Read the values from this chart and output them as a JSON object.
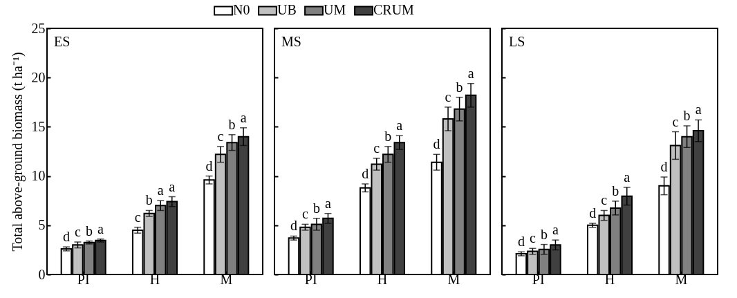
{
  "chart_data": [
    {
      "type": "bar",
      "title": "ES",
      "ylabel": "Total above-ground biomass (t ha⁻¹)",
      "categories": [
        "PI",
        "H",
        "M"
      ],
      "ylim": [
        0,
        25
      ],
      "yticks": [
        0,
        5,
        10,
        15,
        20,
        25
      ],
      "grid": false,
      "legend": "top",
      "series": [
        {
          "name": "N0",
          "color": "#ffffff",
          "values": [
            2.6,
            4.5,
            9.6
          ],
          "errors": [
            0.2,
            0.3,
            0.4
          ],
          "value_labels": [
            "d",
            "c",
            "d"
          ]
        },
        {
          "name": "UB",
          "color": "#c0c0c0",
          "values": [
            3.0,
            6.2,
            12.2
          ],
          "errors": [
            0.3,
            0.3,
            0.8
          ],
          "value_labels": [
            "c",
            "b",
            "c"
          ]
        },
        {
          "name": "UM",
          "color": "#808080",
          "values": [
            3.25,
            7.0,
            13.4
          ],
          "errors": [
            0.15,
            0.5,
            0.8
          ],
          "value_labels": [
            "b",
            "a",
            "b"
          ]
        },
        {
          "name": "CRUM",
          "color": "#404040",
          "values": [
            3.45,
            7.4,
            14.0
          ],
          "errors": [
            0.15,
            0.5,
            0.9
          ],
          "value_labels": [
            "a",
            "a",
            "a"
          ]
        }
      ]
    },
    {
      "type": "bar",
      "title": "MS",
      "categories": [
        "PI",
        "H",
        "M"
      ],
      "ylim": [
        0,
        25
      ],
      "yticks": [
        0,
        5,
        10,
        15,
        20,
        25
      ],
      "grid": false,
      "legend": false,
      "tick_labels": "x",
      "series": [
        {
          "color": "#ffffff",
          "values": [
            3.7,
            8.8,
            11.4
          ],
          "errors": [
            0.2,
            0.4,
            0.8
          ],
          "value_labels": [
            "d",
            "d",
            "d"
          ]
        },
        {
          "color": "#c0c0c0",
          "values": [
            4.8,
            11.2,
            15.8
          ],
          "errors": [
            0.3,
            0.6,
            1.2
          ],
          "value_labels": [
            "c",
            "c",
            "c"
          ]
        },
        {
          "color": "#808080",
          "values": [
            5.1,
            12.2,
            16.8
          ],
          "errors": [
            0.6,
            0.8,
            1.2
          ],
          "value_labels": [
            "b",
            "b",
            "b"
          ]
        },
        {
          "color": "#404040",
          "values": [
            5.7,
            13.4,
            18.2
          ],
          "errors": [
            0.5,
            0.7,
            1.2
          ],
          "value_labels": [
            "a",
            "a",
            "a"
          ]
        }
      ]
    },
    {
      "type": "bar",
      "title": "LS",
      "categories": [
        "PI",
        "H",
        "M"
      ],
      "ylim": [
        0,
        25
      ],
      "yticks": [
        0,
        5,
        10,
        15,
        20,
        25
      ],
      "grid": false,
      "legend": false,
      "tick_labels": "x",
      "series": [
        {
          "color": "#ffffff",
          "values": [
            2.1,
            5.0,
            9.0
          ],
          "errors": [
            0.2,
            0.2,
            0.9
          ],
          "value_labels": [
            "d",
            "d",
            "d"
          ]
        },
        {
          "color": "#c0c0c0",
          "values": [
            2.35,
            6.0,
            13.1
          ],
          "errors": [
            0.3,
            0.5,
            1.4
          ],
          "value_labels": [
            "c",
            "c",
            "c"
          ]
        },
        {
          "color": "#808080",
          "values": [
            2.55,
            6.75,
            14.0
          ],
          "errors": [
            0.5,
            0.7,
            1.1
          ],
          "value_labels": [
            "b",
            "b",
            "b"
          ]
        },
        {
          "color": "#404040",
          "values": [
            3.0,
            7.95,
            14.6
          ],
          "errors": [
            0.5,
            0.9,
            1.1
          ],
          "value_labels": [
            "a",
            "a",
            "a"
          ]
        }
      ]
    }
  ]
}
